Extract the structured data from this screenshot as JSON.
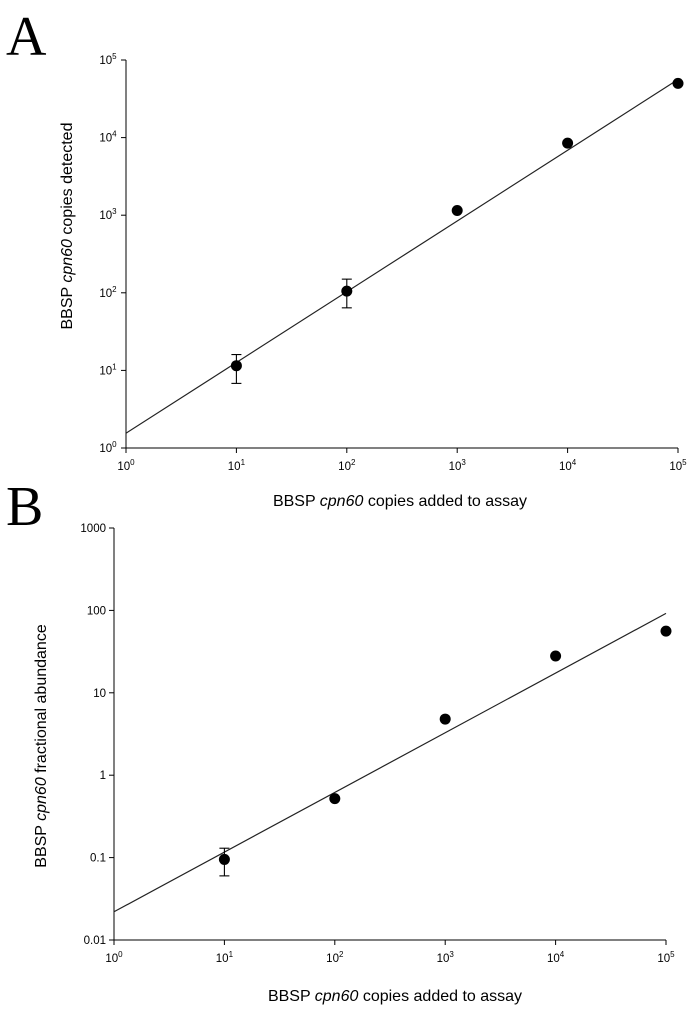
{
  "chart_data": [
    {
      "panel": "A",
      "type": "scatter",
      "xscale": "log",
      "yscale": "log",
      "xlim": [
        1,
        100000
      ],
      "ylim": [
        1,
        100000
      ],
      "x_ticks": [
        {
          "base": "10",
          "exp": "0"
        },
        {
          "base": "10",
          "exp": "1"
        },
        {
          "base": "10",
          "exp": "2"
        },
        {
          "base": "10",
          "exp": "3"
        },
        {
          "base": "10",
          "exp": "4"
        },
        {
          "base": "10",
          "exp": "5"
        }
      ],
      "y_ticks": [
        {
          "base": "10",
          "exp": "0"
        },
        {
          "base": "10",
          "exp": "1"
        },
        {
          "base": "10",
          "exp": "2"
        },
        {
          "base": "10",
          "exp": "3"
        },
        {
          "base": "10",
          "exp": "4"
        },
        {
          "base": "10",
          "exp": "5"
        }
      ],
      "xlabel": {
        "pre": "BBSP ",
        "italic": "cpn60",
        "post": " copies added to assay"
      },
      "ylabel": {
        "pre": "BBSP ",
        "italic": "cpn60",
        "post": " copies detected"
      },
      "points": [
        {
          "x": 10,
          "y": 11.5,
          "err_low": 6.8,
          "err_high": 16
        },
        {
          "x": 100,
          "y": 105,
          "err_low": 64,
          "err_high": 150
        },
        {
          "x": 1000,
          "y": 1150
        },
        {
          "x": 10000,
          "y": 8500
        },
        {
          "x": 100000,
          "y": 50000
        }
      ],
      "fit": [
        {
          "x": 1,
          "y": 1.55
        },
        {
          "x": 100000,
          "y": 56000
        }
      ],
      "grid": false
    },
    {
      "panel": "B",
      "type": "scatter",
      "xscale": "log",
      "yscale": "log",
      "xlim": [
        1,
        100000
      ],
      "ylim": [
        0.01,
        1000
      ],
      "x_ticks": [
        {
          "base": "10",
          "exp": "0"
        },
        {
          "base": "10",
          "exp": "1"
        },
        {
          "base": "10",
          "exp": "2"
        },
        {
          "base": "10",
          "exp": "3"
        },
        {
          "base": "10",
          "exp": "4"
        },
        {
          "base": "10",
          "exp": "5"
        }
      ],
      "y_ticks": [
        "0.01",
        "0.1",
        "1",
        "10",
        "100",
        "1000"
      ],
      "xlabel": {
        "pre": "BBSP ",
        "italic": "cpn60",
        "post": " copies added to assay"
      },
      "ylabel": {
        "pre": "BBSP ",
        "italic": "cpn60",
        "post": " fractional abundance"
      },
      "points": [
        {
          "x": 10,
          "y": 0.095,
          "err_low": 0.06,
          "err_high": 0.13
        },
        {
          "x": 100,
          "y": 0.52
        },
        {
          "x": 1000,
          "y": 4.8
        },
        {
          "x": 10000,
          "y": 28
        },
        {
          "x": 100000,
          "y": 56
        }
      ],
      "fit": [
        {
          "x": 1,
          "y": 0.022
        },
        {
          "x": 100000,
          "y": 92
        }
      ],
      "grid": false
    }
  ]
}
